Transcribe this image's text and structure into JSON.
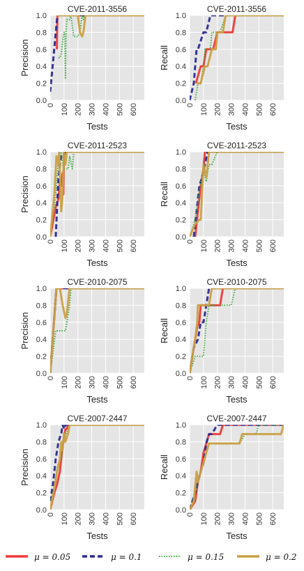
{
  "colors": {
    "mu005": "#ee3a39",
    "mu01": "#2b2b8f",
    "mu015": "#3aa63a",
    "mu02": "#c9a046",
    "plot_bg": "#e5e5e5",
    "grid": "#ffffff"
  },
  "legend": {
    "position": "bottom",
    "entries": [
      "μ = 0.05",
      "μ = 0.1",
      "μ = 0.15",
      "μ = 0.2"
    ]
  },
  "chart_data": [
    {
      "type": "line",
      "title": "CVE-2011-3556",
      "xlabel": "Tests",
      "ylabel": "Precision",
      "xlim": [
        0,
        680
      ],
      "ylim": [
        0,
        1
      ],
      "xticks": [
        "0",
        "100",
        "200",
        "300",
        "400",
        "500",
        "600"
      ],
      "yticks": [
        "0.0",
        "0.2",
        "0.4",
        "0.6",
        "0.8",
        "1.0"
      ],
      "grid": true,
      "series": [
        {
          "name": "μ = 0.05",
          "style": "solid",
          "x": [
            48,
            52,
            680
          ],
          "y": [
            0.6,
            1.0,
            1.0
          ]
        },
        {
          "name": "μ = 0.1",
          "style": "dashed",
          "x": [
            0,
            52,
            56,
            680
          ],
          "y": [
            0.1,
            1.0,
            1.0,
            1.0
          ]
        },
        {
          "name": "μ = 0.15",
          "style": "dotted",
          "x": [
            60,
            70,
            80,
            90,
            100,
            105,
            110,
            115,
            120,
            140,
            150,
            170,
            190,
            200,
            215,
            230,
            240,
            250,
            680
          ],
          "y": [
            0.5,
            0.5,
            0.55,
            0.7,
            0.8,
            0.8,
            0.25,
            0.8,
            0.95,
            0.95,
            1.0,
            0.75,
            0.75,
            0.75,
            0.8,
            1.0,
            0.95,
            1.0,
            1.0
          ]
        },
        {
          "name": "μ = 0.2",
          "style": "solid",
          "x": [
            45,
            60,
            200,
            215,
            230,
            240,
            255,
            680
          ],
          "y": [
            1.0,
            1.0,
            1.0,
            0.8,
            0.75,
            0.8,
            1.0,
            1.0
          ]
        }
      ]
    },
    {
      "type": "line",
      "title": "CVE-2011-3556",
      "xlabel": "Tests",
      "ylabel": "Recall",
      "xlim": [
        0,
        680
      ],
      "ylim": [
        0,
        1
      ],
      "xticks": [
        "0",
        "100",
        "200",
        "300",
        "400",
        "500",
        "600"
      ],
      "yticks": [
        "0.0",
        "0.2",
        "0.4",
        "0.6",
        "0.8",
        "1.0"
      ],
      "grid": true,
      "series": [
        {
          "name": "μ = 0.05",
          "style": "solid",
          "x": [
            45,
            80,
            100,
            120,
            130,
            170,
            200,
            230,
            260,
            310,
            330,
            340,
            680
          ],
          "y": [
            0.2,
            0.4,
            0.4,
            0.6,
            0.6,
            0.6,
            0.8,
            0.8,
            0.8,
            0.8,
            1.0,
            1.0,
            1.0
          ]
        },
        {
          "name": "μ = 0.1",
          "style": "dashed",
          "x": [
            0,
            30,
            50,
            60,
            100,
            120,
            150,
            680
          ],
          "y": [
            0.0,
            0.2,
            0.6,
            0.6,
            0.8,
            0.8,
            1.0,
            1.0
          ]
        },
        {
          "name": "μ = 0.15",
          "style": "dotted",
          "x": [
            40,
            60,
            80,
            100,
            110,
            130,
            150,
            160,
            190,
            200,
            220,
            260,
            680
          ],
          "y": [
            0.0,
            0.2,
            0.2,
            0.4,
            0.6,
            0.6,
            0.6,
            0.8,
            0.8,
            0.8,
            0.8,
            1.0,
            1.0
          ]
        },
        {
          "name": "μ = 0.2",
          "style": "solid",
          "x": [
            50,
            80,
            110,
            130,
            160,
            190,
            200,
            240,
            260,
            680
          ],
          "y": [
            0.2,
            0.2,
            0.4,
            0.4,
            0.6,
            0.6,
            0.8,
            0.8,
            1.0,
            1.0
          ]
        }
      ]
    },
    {
      "type": "line",
      "title": "CVE-2011-2523",
      "xlabel": "Tests",
      "ylabel": "Precision",
      "xlim": [
        0,
        680
      ],
      "ylim": [
        0,
        1
      ],
      "xticks": [
        "0",
        "100",
        "200",
        "300",
        "400",
        "500",
        "600"
      ],
      "yticks": [
        "0.0",
        "0.2",
        "0.4",
        "0.6",
        "0.8",
        "1.0"
      ],
      "grid": true,
      "series": [
        {
          "name": "μ = 0.05",
          "style": "solid",
          "x": [
            0,
            40,
            60,
            70,
            80,
            90,
            95,
            100,
            680
          ],
          "y": [
            0.0,
            0.35,
            0.45,
            0.65,
            0.6,
            0.75,
            0.5,
            1.0,
            1.0
          ]
        },
        {
          "name": "μ = 0.1",
          "style": "dashed",
          "x": [
            40,
            50,
            55,
            60,
            65,
            70,
            80,
            95,
            110,
            120,
            680
          ],
          "y": [
            0.0,
            0.35,
            0.55,
            0.7,
            0.75,
            0.85,
            0.95,
            0.95,
            1.0,
            1.0,
            1.0
          ]
        },
        {
          "name": "μ = 0.15",
          "style": "dotted",
          "x": [
            0,
            30,
            50,
            60,
            70,
            80,
            95,
            110,
            130,
            140,
            160,
            170,
            680
          ],
          "y": [
            0.0,
            0.35,
            0.7,
            0.95,
            0.95,
            1.0,
            0.8,
            0.8,
            0.8,
            0.95,
            0.8,
            1.0,
            1.0
          ]
        },
        {
          "name": "μ = 0.2",
          "style": "solid",
          "x": [
            0,
            30,
            45,
            60,
            65,
            80,
            90,
            100,
            110,
            120,
            680
          ],
          "y": [
            0.0,
            0.5,
            0.95,
            0.85,
            1.0,
            0.3,
            0.5,
            1.0,
            0.85,
            1.0,
            1.0
          ]
        }
      ]
    },
    {
      "type": "line",
      "title": "CVE-2011-2523",
      "xlabel": "Tests",
      "ylabel": "Recall",
      "xlim": [
        0,
        680
      ],
      "ylim": [
        0,
        1
      ],
      "xticks": [
        "0",
        "100",
        "200",
        "300",
        "400",
        "500",
        "600"
      ],
      "yticks": [
        "0.0",
        "0.2",
        "0.4",
        "0.6",
        "0.8",
        "1.0"
      ],
      "grid": true,
      "series": [
        {
          "name": "μ = 0.05",
          "style": "solid",
          "x": [
            40,
            60,
            80,
            100,
            110,
            130,
            150,
            680
          ],
          "y": [
            0.0,
            0.3,
            0.6,
            0.8,
            1.0,
            1.0,
            1.0,
            1.0
          ]
        },
        {
          "name": "μ = 0.1",
          "style": "dashed",
          "x": [
            30,
            50,
            70,
            90,
            110,
            130,
            680
          ],
          "y": [
            0.0,
            0.3,
            0.6,
            0.7,
            0.85,
            1.0,
            1.0
          ]
        },
        {
          "name": "μ = 0.15",
          "style": "dotted",
          "x": [
            0,
            30,
            50,
            70,
            100,
            120,
            140,
            160,
            200,
            680
          ],
          "y": [
            0.0,
            0.15,
            0.3,
            0.55,
            0.8,
            0.65,
            0.85,
            0.85,
            1.0,
            1.0
          ]
        },
        {
          "name": "μ = 0.2",
          "style": "solid",
          "x": [
            0,
            40,
            70,
            80,
            100,
            120,
            130,
            140,
            160,
            680
          ],
          "y": [
            0.0,
            0.15,
            0.2,
            0.2,
            0.85,
            0.7,
            0.85,
            1.0,
            1.0,
            1.0
          ]
        }
      ]
    },
    {
      "type": "line",
      "title": "CVE-2010-2075",
      "xlabel": "Tests",
      "ylabel": "Precision",
      "xlim": [
        0,
        680
      ],
      "ylim": [
        0,
        1
      ],
      "xticks": [
        "0",
        "100",
        "200",
        "300",
        "400",
        "500",
        "600"
      ],
      "yticks": [
        "0.0",
        "0.2",
        "0.4",
        "0.6",
        "0.8",
        "1.0"
      ],
      "grid": true,
      "series": [
        {
          "name": "μ = 0.05",
          "style": "solid",
          "x": [
            0,
            45,
            55,
            680
          ],
          "y": [
            0.0,
            1.0,
            1.0,
            1.0
          ]
        },
        {
          "name": "μ = 0.1",
          "style": "dashed",
          "x": [
            0,
            45,
            55,
            100,
            110,
            680
          ],
          "y": [
            0.0,
            1.0,
            1.0,
            1.0,
            1.0,
            1.0
          ]
        },
        {
          "name": "μ = 0.15",
          "style": "dotted",
          "x": [
            0,
            40,
            60,
            90,
            110,
            130,
            140,
            150,
            680
          ],
          "y": [
            0.0,
            0.5,
            0.5,
            0.5,
            0.5,
            0.7,
            0.8,
            1.0,
            1.0
          ]
        },
        {
          "name": "μ = 0.2",
          "style": "solid",
          "x": [
            0,
            45,
            55,
            70,
            90,
            110,
            120,
            140,
            680
          ],
          "y": [
            0.0,
            1.0,
            1.0,
            1.0,
            0.8,
            0.65,
            0.7,
            1.0,
            1.0
          ]
        }
      ]
    },
    {
      "type": "line",
      "title": "CVE-2010-2075",
      "xlabel": "Tests",
      "ylabel": "Recall",
      "xlim": [
        0,
        680
      ],
      "ylim": [
        0,
        1
      ],
      "xticks": [
        "0",
        "100",
        "200",
        "300",
        "400",
        "500",
        "600"
      ],
      "yticks": [
        "0.0",
        "0.2",
        "0.4",
        "0.6",
        "0.8",
        "1.0"
      ],
      "grid": true,
      "series": [
        {
          "name": "μ = 0.05",
          "style": "solid",
          "x": [
            0,
            30,
            55,
            70,
            80,
            200,
            220,
            240,
            680
          ],
          "y": [
            0.0,
            0.3,
            0.55,
            0.6,
            0.8,
            0.8,
            0.8,
            1.0,
            1.0
          ]
        },
        {
          "name": "μ = 0.1",
          "style": "dashed",
          "x": [
            0,
            30,
            60,
            80,
            100,
            120,
            140,
            160,
            680
          ],
          "y": [
            0.0,
            0.3,
            0.4,
            0.6,
            0.6,
            0.8,
            1.0,
            1.0,
            1.0
          ]
        },
        {
          "name": "μ = 0.15",
          "style": "dotted",
          "x": [
            0,
            40,
            60,
            80,
            100,
            120,
            140,
            160,
            220,
            280,
            300,
            330,
            680
          ],
          "y": [
            0.0,
            0.2,
            0.2,
            0.2,
            0.2,
            0.6,
            0.8,
            0.8,
            0.8,
            0.8,
            0.8,
            1.0,
            1.0
          ]
        },
        {
          "name": "μ = 0.2",
          "style": "solid",
          "x": [
            0,
            40,
            55,
            60,
            80,
            120,
            140,
            160,
            680
          ],
          "y": [
            0.0,
            0.4,
            0.6,
            0.8,
            0.8,
            0.8,
            0.8,
            1.0,
            1.0
          ]
        }
      ]
    },
    {
      "type": "line",
      "title": "CVE-2007-2447",
      "xlabel": "Tests",
      "ylabel": "Precision",
      "xlim": [
        0,
        680
      ],
      "ylim": [
        0,
        1
      ],
      "xticks": [
        "0",
        "100",
        "200",
        "300",
        "400",
        "500",
        "600"
      ],
      "yticks": [
        "0.0",
        "0.2",
        "0.4",
        "0.6",
        "0.8",
        "1.0"
      ],
      "grid": true,
      "series": [
        {
          "name": "μ = 0.05",
          "style": "solid",
          "x": [
            0,
            30,
            50,
            70,
            80,
            90,
            100,
            110,
            120,
            130,
            680
          ],
          "y": [
            0.0,
            0.2,
            0.3,
            0.45,
            0.6,
            0.75,
            0.85,
            0.95,
            0.95,
            1.0,
            1.0
          ]
        },
        {
          "name": "μ = 0.1",
          "style": "dashed",
          "x": [
            0,
            20,
            40,
            60,
            80,
            90,
            100,
            110,
            120,
            680
          ],
          "y": [
            0.1,
            0.3,
            0.6,
            0.8,
            0.9,
            1.0,
            0.95,
            1.0,
            1.0,
            1.0
          ]
        },
        {
          "name": "μ = 0.15",
          "style": "dotted",
          "x": [
            0,
            30,
            50,
            70,
            80,
            100,
            120,
            140,
            680
          ],
          "y": [
            0.1,
            0.25,
            0.5,
            0.6,
            0.6,
            0.85,
            0.9,
            1.0,
            1.0
          ]
        },
        {
          "name": "μ = 0.2",
          "style": "solid",
          "x": [
            0,
            30,
            50,
            70,
            80,
            90,
            100,
            110,
            130,
            140,
            680
          ],
          "y": [
            0.0,
            0.25,
            0.45,
            0.6,
            0.8,
            0.7,
            0.9,
            0.8,
            0.9,
            1.0,
            1.0
          ]
        }
      ]
    },
    {
      "type": "line",
      "title": "CVE-2007-2447",
      "xlabel": "Tests",
      "ylabel": "Recall",
      "xlim": [
        0,
        680
      ],
      "ylim": [
        0,
        1
      ],
      "xticks": [
        "0",
        "100",
        "200",
        "300",
        "400",
        "500",
        "600"
      ],
      "yticks": [
        "0.0",
        "0.2",
        "0.4",
        "0.6",
        "0.8",
        "1.0"
      ],
      "grid": true,
      "series": [
        {
          "name": "μ = 0.05",
          "style": "solid",
          "x": [
            0,
            40,
            60,
            80,
            100,
            120,
            140,
            220,
            240,
            280,
            680
          ],
          "y": [
            0.0,
            0.1,
            0.33,
            0.45,
            0.67,
            0.78,
            0.89,
            0.89,
            1.0,
            1.0,
            1.0
          ]
        },
        {
          "name": "μ = 0.1",
          "style": "dashed",
          "x": [
            0,
            40,
            60,
            80,
            100,
            120,
            140,
            160,
            200,
            220,
            640,
            660,
            680
          ],
          "y": [
            0.0,
            0.2,
            0.33,
            0.45,
            0.55,
            0.78,
            0.89,
            0.89,
            1.0,
            1.0,
            1.0,
            1.0,
            1.0
          ]
        },
        {
          "name": "μ = 0.15",
          "style": "dotted",
          "x": [
            0,
            40,
            60,
            80,
            100,
            120,
            140,
            160,
            360,
            400,
            480,
            500,
            680
          ],
          "y": [
            0.0,
            0.2,
            0.33,
            0.45,
            0.55,
            0.67,
            0.78,
            0.78,
            0.78,
            0.89,
            0.89,
            1.0,
            1.0
          ]
        },
        {
          "name": "μ = 0.2",
          "style": "solid",
          "x": [
            0,
            30,
            50,
            60,
            80,
            100,
            120,
            140,
            360,
            380,
            660,
            680
          ],
          "y": [
            0.0,
            0.1,
            0.45,
            0.33,
            0.45,
            0.55,
            0.67,
            0.78,
            0.78,
            0.89,
            0.89,
            1.0
          ]
        }
      ]
    }
  ]
}
